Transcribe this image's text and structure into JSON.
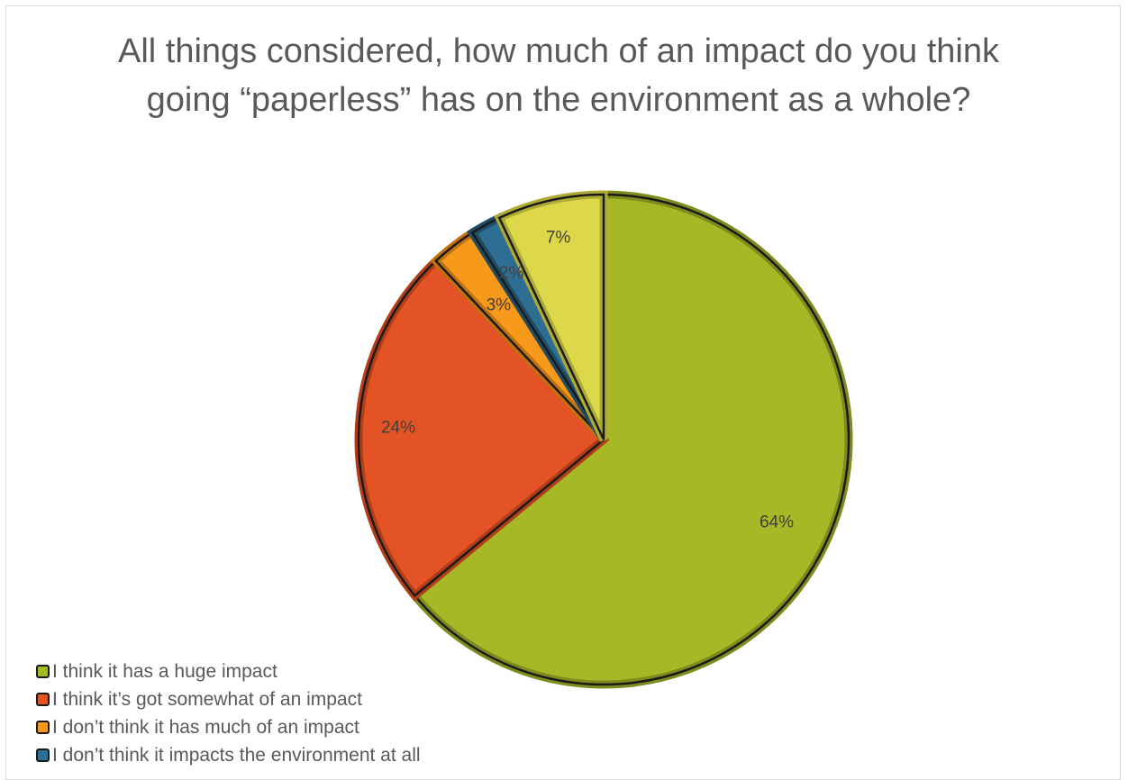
{
  "chart_data": {
    "type": "pie",
    "title": "All things considered, how much of an impact do you think going “paperless” has on the environment as a whole?",
    "categories": [
      "I think it has a huge impact",
      "I think it’s got somewhat of an impact",
      "I don’t think it has much of an impact",
      "I don’t think it impacts the environment at all",
      ""
    ],
    "values": [
      64,
      24,
      3,
      2,
      7
    ],
    "data_labels": [
      "64%",
      "24%",
      "3%",
      "2%",
      "7%"
    ],
    "colors": [
      "#a6b825",
      "#e35325",
      "#f79a1b",
      "#2f6e93",
      "#dcd849"
    ],
    "border_colors": [
      "#7d8c1c",
      "#b23d17",
      "#c27210",
      "#1e4d68",
      "#adaa35"
    ],
    "legend_position": "bottom-left"
  }
}
